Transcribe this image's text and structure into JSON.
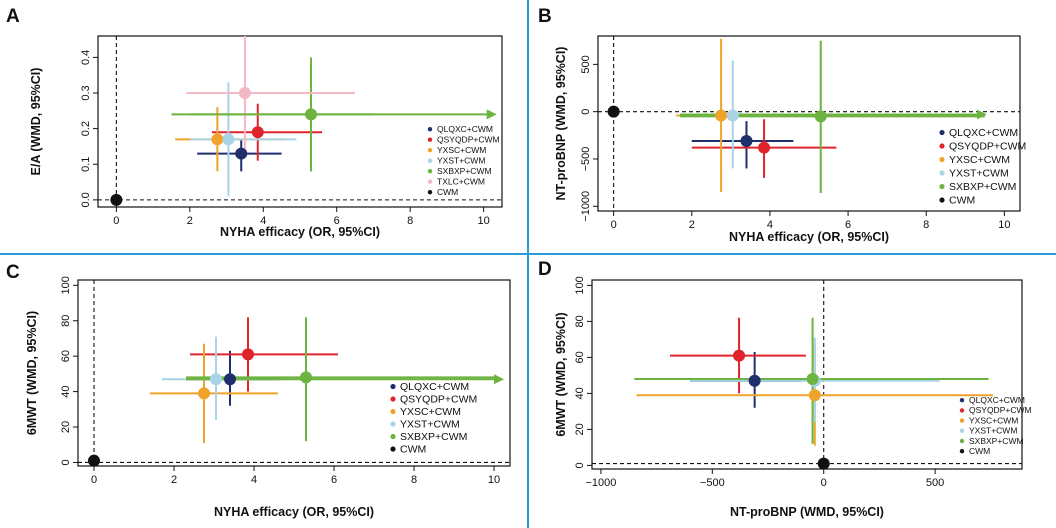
{
  "colors": {
    "divider": "#2a9bd6",
    "QLQXC+CWM": "#1f2f6b",
    "QSYQDP+CWM": "#e0242c",
    "YXSC+CWM": "#f0a32a",
    "YXST+CWM": "#a8d4e6",
    "SXBXP+CWM": "#6cb33f",
    "TXLC+CWM": "#f4b8c4",
    "CWM": "#111111"
  },
  "chart_data": [
    {
      "panel": "A",
      "type": "scatter",
      "xlabel": "NYHA efficacy (OR, 95%CI)",
      "ylabel": "E/A (WMD, 95%CI)",
      "xlim": [
        -0.5,
        10.5
      ],
      "ylim": [
        -0.02,
        0.46
      ],
      "xticks": [
        0,
        2,
        4,
        6,
        8,
        10
      ],
      "yticks": [
        0.0,
        0.1,
        0.2,
        0.3,
        0.4
      ],
      "tick_labels_x": [
        "0",
        "2",
        "4",
        "6",
        "8",
        "10"
      ],
      "tick_labels_y": [
        "0.0",
        "0.1",
        "0.2",
        "0.3",
        "0.4"
      ],
      "ref_x": 0,
      "ref_y": 0,
      "arrow": {
        "from": [
          1.5,
          0.24
        ],
        "to": [
          10.3,
          0.24
        ],
        "color": "SXBXP+CWM"
      },
      "legend_position": "right",
      "series": [
        {
          "name": "QLQXC+CWM",
          "x": 3.4,
          "x_lo": 2.2,
          "x_hi": 4.5,
          "y": 0.13,
          "y_lo": 0.08,
          "y_hi": 0.17
        },
        {
          "name": "QSYQDP+CWM",
          "x": 3.85,
          "x_lo": 2.6,
          "x_hi": 5.6,
          "y": 0.19,
          "y_lo": 0.11,
          "y_hi": 0.27
        },
        {
          "name": "YXSC+CWM",
          "x": 2.75,
          "x_lo": 1.6,
          "x_hi": 4.6,
          "y": 0.17,
          "y_lo": 0.08,
          "y_hi": 0.26
        },
        {
          "name": "YXST+CWM",
          "x": 3.05,
          "x_lo": 2.0,
          "x_hi": 4.9,
          "y": 0.17,
          "y_lo": 0.01,
          "y_hi": 0.33
        },
        {
          "name": "SXBXP+CWM",
          "x": 5.3,
          "x_lo": 2.0,
          "x_hi": 7.0,
          "y": 0.24,
          "y_lo": 0.08,
          "y_hi": 0.4
        },
        {
          "name": "TXLC+CWM",
          "x": 3.5,
          "x_lo": 1.9,
          "x_hi": 6.5,
          "y": 0.3,
          "y_lo": 0.12,
          "y_hi": 0.46
        },
        {
          "name": "CWM",
          "x": 0,
          "x_lo": 0,
          "x_hi": 0,
          "y": 0,
          "y_lo": 0,
          "y_hi": 0
        }
      ]
    },
    {
      "panel": "B",
      "type": "scatter",
      "xlabel": "NYHA efficacy (OR, 95%CI)",
      "ylabel": "NT-proBNP (WMD, 95%CI)",
      "xlim": [
        -0.4,
        10.4
      ],
      "ylim": [
        -1050,
        800
      ],
      "xticks": [
        0,
        2,
        4,
        6,
        8,
        10
      ],
      "yticks": [
        -1000,
        -500,
        0,
        500
      ],
      "tick_labels_x": [
        "0",
        "2",
        "4",
        "6",
        "8",
        "10"
      ],
      "tick_labels_y": [
        "−1000",
        "−500",
        "0",
        "500"
      ],
      "ref_x": 0,
      "ref_y": 0,
      "arrow": {
        "from": [
          1.7,
          -30
        ],
        "to": [
          9.5,
          -30
        ],
        "color": "SXBXP+CWM"
      },
      "legend_position": "right",
      "series": [
        {
          "name": "QLQXC+CWM",
          "x": 3.4,
          "x_lo": 2.0,
          "x_hi": 4.6,
          "y": -310,
          "y_lo": -600,
          "y_hi": -100
        },
        {
          "name": "QSYQDP+CWM",
          "x": 3.85,
          "x_lo": 2.0,
          "x_hi": 5.7,
          "y": -380,
          "y_lo": -700,
          "y_hi": -80
        },
        {
          "name": "YXSC+CWM",
          "x": 2.75,
          "x_lo": 1.6,
          "x_hi": 4.6,
          "y": -40,
          "y_lo": -850,
          "y_hi": 770
        },
        {
          "name": "YXST+CWM",
          "x": 3.05,
          "x_lo": 1.9,
          "x_hi": 5.2,
          "y": -40,
          "y_lo": -600,
          "y_hi": 540
        },
        {
          "name": "SXBXP+CWM",
          "x": 5.3,
          "x_lo": 1.7,
          "x_hi": 9.5,
          "y": -50,
          "y_lo": -860,
          "y_hi": 750
        },
        {
          "name": "CWM",
          "x": 0,
          "x_lo": 0,
          "x_hi": 0,
          "y": 0,
          "y_lo": 0,
          "y_hi": 0
        }
      ]
    },
    {
      "panel": "C",
      "type": "scatter",
      "xlabel": "NYHA efficacy (OR, 95%CI)",
      "ylabel": "6MWT (WMD, 95%CI)",
      "xlim": [
        -0.4,
        10.4
      ],
      "ylim": [
        -2,
        103
      ],
      "xticks": [
        0,
        2,
        4,
        6,
        8,
        10
      ],
      "yticks": [
        0,
        20,
        40,
        60,
        80,
        100
      ],
      "tick_labels_x": [
        "0",
        "2",
        "4",
        "6",
        "8",
        "10"
      ],
      "tick_labels_y": [
        "0",
        "20",
        "40",
        "60",
        "80",
        "100"
      ],
      "ref_x": 0,
      "ref_y": 0,
      "arrow": {
        "from": [
          2.3,
          47
        ],
        "to": [
          10.2,
          47
        ],
        "color": "SXBXP+CWM"
      },
      "legend_position": "right",
      "series": [
        {
          "name": "QLQXC+CWM",
          "x": 3.4,
          "x_lo": 2.3,
          "x_hi": 4.6,
          "y": 47,
          "y_lo": 32,
          "y_hi": 63
        },
        {
          "name": "QSYQDP+CWM",
          "x": 3.85,
          "x_lo": 2.4,
          "x_hi": 6.1,
          "y": 61,
          "y_lo": 40,
          "y_hi": 82
        },
        {
          "name": "YXSC+CWM",
          "x": 2.75,
          "x_lo": 1.4,
          "x_hi": 4.6,
          "y": 39,
          "y_lo": 11,
          "y_hi": 67
        },
        {
          "name": "YXST+CWM",
          "x": 3.05,
          "x_lo": 1.7,
          "x_hi": 4.9,
          "y": 47,
          "y_lo": 24,
          "y_hi": 71
        },
        {
          "name": "SXBXP+CWM",
          "x": 5.3,
          "x_lo": 2.3,
          "x_hi": 10.0,
          "y": 48,
          "y_lo": 12,
          "y_hi": 82
        },
        {
          "name": "CWM",
          "x": 0,
          "x_lo": 0,
          "x_hi": 0,
          "y": 1,
          "y_lo": 1,
          "y_hi": 1
        }
      ]
    },
    {
      "panel": "D",
      "type": "scatter",
      "xlabel": "NT-proBNP (WMD, 95%CI)",
      "ylabel": "6MWT (WMD, 95%CI)",
      "xlim": [
        -1040,
        890
      ],
      "ylim": [
        -2,
        103
      ],
      "xticks": [
        -1000,
        -500,
        0,
        500
      ],
      "yticks": [
        0,
        20,
        40,
        60,
        80,
        100
      ],
      "tick_labels_x": [
        "−1000",
        "−500",
        "0",
        "500"
      ],
      "tick_labels_y": [
        "0",
        "20",
        "40",
        "60",
        "80",
        "100"
      ],
      "ref_x": 0,
      "ref_y": 1,
      "arrow": null,
      "legend_position": "right",
      "series": [
        {
          "name": "QLQXC+CWM",
          "x": -310,
          "x_lo": -600,
          "x_hi": -100,
          "y": 47,
          "y_lo": 32,
          "y_hi": 63
        },
        {
          "name": "QSYQDP+CWM",
          "x": -380,
          "x_lo": -690,
          "x_hi": -80,
          "y": 61,
          "y_lo": 40,
          "y_hi": 82
        },
        {
          "name": "YXSC+CWM",
          "x": -40,
          "x_lo": -840,
          "x_hi": 760,
          "y": 39,
          "y_lo": 11,
          "y_hi": 67
        },
        {
          "name": "YXST+CWM",
          "x": -40,
          "x_lo": -600,
          "x_hi": 520,
          "y": 47,
          "y_lo": 24,
          "y_hi": 71
        },
        {
          "name": "SXBXP+CWM",
          "x": -50,
          "x_lo": -850,
          "x_hi": 740,
          "y": 48,
          "y_lo": 12,
          "y_hi": 82
        },
        {
          "name": "CWM",
          "x": 0,
          "x_lo": 0,
          "x_hi": 0,
          "y": 1,
          "y_lo": 1,
          "y_hi": 1
        }
      ]
    }
  ]
}
